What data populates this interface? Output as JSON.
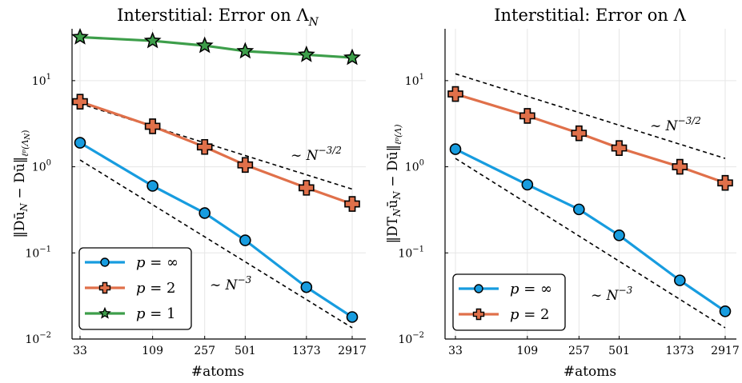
{
  "chart_data": [
    {
      "type": "line",
      "title": "Interstitial: Error on Λ_N",
      "xlabel": "#atoms",
      "ylabel": "||Dū_N − Dū||_{ℓ^p(Λ_N)}",
      "x_scale": "log",
      "y_scale": "log",
      "x_ticks": [
        "33",
        "109",
        "257",
        "501",
        "1373",
        "2917"
      ],
      "y_ticks": [
        "10^1",
        "10^0",
        "10^-1",
        "10^-2"
      ],
      "ylim": [
        0.01,
        40
      ],
      "grid": true,
      "legend_position": "bottom-left",
      "x": [
        33,
        109,
        257,
        501,
        1373,
        2917
      ],
      "series": [
        {
          "name": "p = ∞",
          "color": "#179cdf",
          "marker": "circle",
          "values": [
            1.9,
            0.6,
            0.29,
            0.14,
            0.04,
            0.018
          ]
        },
        {
          "name": "p = 2",
          "color": "#e0704a",
          "marker": "cross",
          "values": [
            5.7,
            2.95,
            1.7,
            1.05,
            0.57,
            0.37
          ]
        },
        {
          "name": "p = 1",
          "color": "#3d9e4a",
          "marker": "star",
          "values": [
            32,
            29,
            25.5,
            22,
            20,
            18.5
          ]
        }
      ],
      "reference_lines": [
        {
          "label": "∼ N^{−3/2}",
          "x": [
            33,
            2917
          ],
          "y": [
            5.4,
            0.55
          ]
        },
        {
          "label": "∼ N^{−3}",
          "x": [
            33,
            2917
          ],
          "y": [
            1.2,
            0.0135
          ]
        }
      ]
    },
    {
      "type": "line",
      "title": "Interstitial: Error on Λ",
      "xlabel": "#atoms",
      "ylabel": "||DT_N ū_N − Dū||_{ℓ^p(Λ)}",
      "x_scale": "log",
      "y_scale": "log",
      "x_ticks": [
        "33",
        "109",
        "257",
        "501",
        "1373",
        "2917"
      ],
      "y_ticks": [
        "10^1",
        "10^0",
        "10^-1",
        "10^-2"
      ],
      "ylim": [
        0.01,
        40
      ],
      "grid": true,
      "legend_position": "bottom-left",
      "x": [
        33,
        109,
        257,
        501,
        1373,
        2917
      ],
      "series": [
        {
          "name": "p = ∞",
          "color": "#179cdf",
          "marker": "circle",
          "values": [
            1.6,
            0.62,
            0.32,
            0.16,
            0.048,
            0.021
          ]
        },
        {
          "name": "p = 2",
          "color": "#e0704a",
          "marker": "cross",
          "values": [
            7.0,
            3.9,
            2.45,
            1.65,
            1.0,
            0.65
          ]
        }
      ],
      "reference_lines": [
        {
          "label": "∼ N^{−3/2}",
          "x": [
            33,
            2917
          ],
          "y": [
            12.0,
            1.25
          ]
        },
        {
          "label": "∼ N^{−3}",
          "x": [
            33,
            2917
          ],
          "y": [
            1.25,
            0.0135
          ]
        }
      ]
    }
  ],
  "panels": [
    {
      "title_main": "Interstitial: Error on Λ",
      "title_sub": "N",
      "xlabel": "#atoms",
      "ylabel": "‖Dū",
      "ylabel_sub1": "N",
      "ylabel_mid": " − Dū‖",
      "ylabel_sub2": "ℓᵖ(Λ",
      "ylabel_sub2b": "N",
      "ylabel_sub2c": ")",
      "annot_slow": "∼ N",
      "annot_slow_exp": "−3/2",
      "annot_fast": "∼ N",
      "annot_fast_exp": "−3",
      "legend": [
        {
          "prefix": "p",
          "suffix": " = ∞"
        },
        {
          "prefix": "p",
          "suffix": " = 2"
        },
        {
          "prefix": "p",
          "suffix": " = 1"
        }
      ]
    },
    {
      "title_main": "Interstitial: Error on Λ",
      "title_sub": "",
      "xlabel": "#atoms",
      "ylabel": "‖DT",
      "ylabel_sub1": "N",
      "ylabel_mid": "ū",
      "ylabel_sub1b": "N",
      "ylabel_end": " − Dū‖",
      "ylabel_sub2": "ℓᵖ(Λ)",
      "annot_slow": "∼ N",
      "annot_slow_exp": "−3/2",
      "annot_fast": "∼ N",
      "annot_fast_exp": "−3",
      "legend": [
        {
          "prefix": "p",
          "suffix": " = ∞"
        },
        {
          "prefix": "p",
          "suffix": " = 2"
        }
      ]
    }
  ],
  "tick_labels": {
    "x": [
      "33",
      "109",
      "257",
      "501",
      "1373",
      "2917"
    ],
    "y": [
      {
        "base": "10",
        "exp": "1"
      },
      {
        "base": "10",
        "exp": "0"
      },
      {
        "base": "10",
        "exp": "−1"
      },
      {
        "base": "10",
        "exp": "−2"
      }
    ]
  }
}
